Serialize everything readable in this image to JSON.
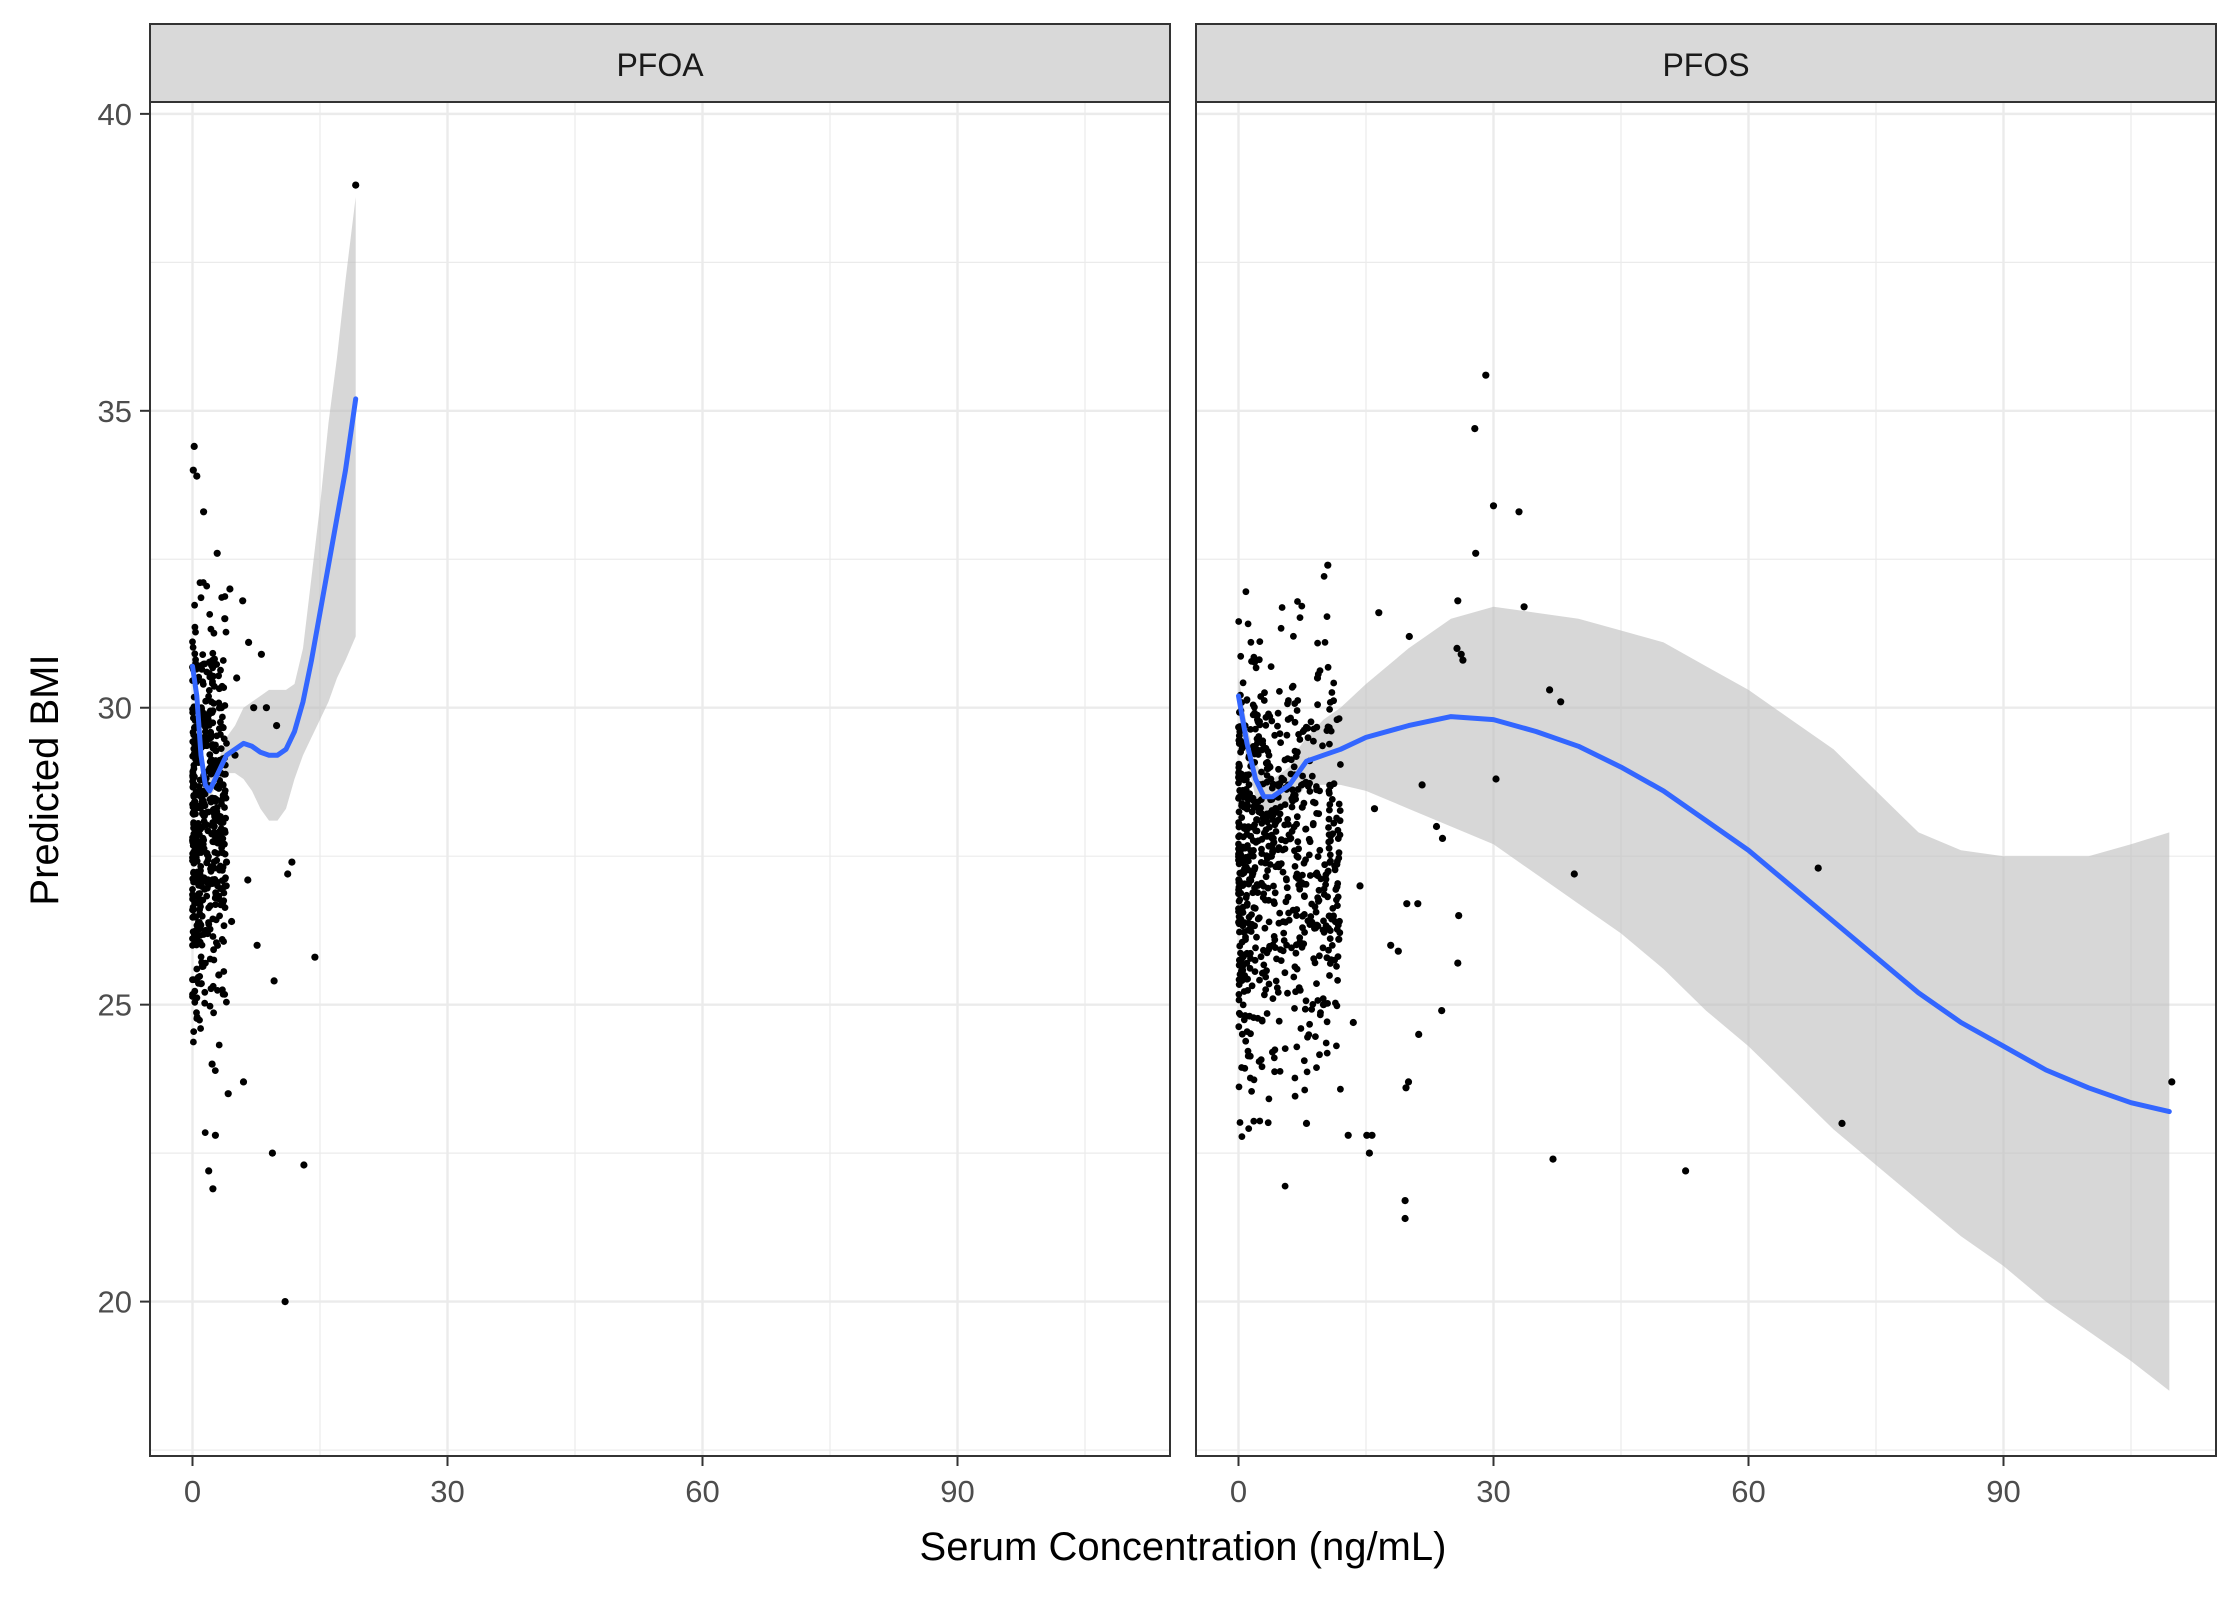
{
  "chart_data": {
    "type": "scatter",
    "xlabel": "Serum Concentration (ng/mL)",
    "ylabel": "Predicted BMI",
    "xlim": [
      -5,
      115
    ],
    "ylim": [
      17.4,
      40.2
    ],
    "x_ticks": [
      0,
      30,
      60,
      90
    ],
    "y_ticks": [
      20,
      25,
      30,
      35,
      40
    ],
    "grid": true,
    "colors": {
      "smooth": "#3366ff",
      "ribbon": "#bebebe",
      "points": "#000000",
      "strip": "#d9d9d9",
      "grid": "#ebebeb"
    },
    "panels": [
      {
        "name": "PFOA",
        "scatter_cluster": {
          "x_range": [
            0,
            4
          ],
          "y_range": [
            21.8,
            34.4
          ],
          "approx_count": 520
        },
        "points": [
          [
            19.2,
            38.8
          ],
          [
            0.2,
            34.4
          ],
          [
            0.1,
            34.0
          ],
          [
            0.5,
            33.9
          ],
          [
            1.3,
            33.3
          ],
          [
            10.9,
            20.0
          ],
          [
            11.7,
            27.4
          ],
          [
            11.2,
            27.2
          ],
          [
            14.4,
            25.8
          ],
          [
            9.6,
            25.4
          ],
          [
            9.4,
            22.5
          ],
          [
            13.1,
            22.3
          ],
          [
            2.7,
            22.8
          ],
          [
            2.4,
            21.9
          ],
          [
            1.9,
            22.2
          ],
          [
            6.0,
            23.7
          ],
          [
            4.2,
            23.5
          ],
          [
            6.5,
            27.1
          ],
          [
            7.6,
            26.0
          ],
          [
            3.4,
            30.0
          ],
          [
            5.2,
            30.5
          ],
          [
            6.6,
            31.1
          ],
          [
            5.9,
            31.8
          ],
          [
            4.4,
            32.0
          ],
          [
            7.2,
            30.0
          ],
          [
            8.1,
            30.9
          ],
          [
            4.0,
            27.4
          ],
          [
            3.1,
            25.5
          ],
          [
            3.6,
            28.7
          ],
          [
            5.0,
            29.2
          ],
          [
            9.9,
            29.7
          ],
          [
            8.7,
            30.0
          ],
          [
            2.9,
            32.6
          ],
          [
            3.8,
            31.5
          ],
          [
            2.3,
            24.0
          ],
          [
            4.6,
            26.4
          ]
        ],
        "smooth": {
          "x": [
            0,
            0.5,
            1,
            1.5,
            2,
            3,
            4,
            5,
            6,
            7,
            8,
            9,
            10,
            11,
            12,
            13,
            14,
            15,
            16,
            17,
            18,
            19.2
          ],
          "y": [
            30.7,
            30.2,
            29.2,
            28.7,
            28.6,
            28.9,
            29.2,
            29.3,
            29.4,
            29.35,
            29.25,
            29.2,
            29.2,
            29.3,
            29.6,
            30.1,
            30.8,
            31.6,
            32.4,
            33.2,
            34.0,
            35.2
          ]
        },
        "ribbon": {
          "x": [
            0,
            0.5,
            1,
            1.5,
            2,
            3,
            4,
            5,
            6,
            7,
            8,
            9,
            10,
            11,
            12,
            13,
            14,
            15,
            16,
            17,
            18,
            19.2
          ],
          "lower": [
            30.4,
            29.9,
            28.9,
            28.4,
            28.5,
            28.7,
            28.9,
            28.9,
            28.8,
            28.6,
            28.3,
            28.1,
            28.1,
            28.3,
            28.8,
            29.2,
            29.5,
            29.8,
            30.1,
            30.5,
            30.8,
            31.2
          ],
          "upper": [
            31.0,
            30.5,
            29.5,
            29.0,
            28.8,
            29.1,
            29.5,
            29.7,
            30.0,
            30.1,
            30.2,
            30.3,
            30.3,
            30.3,
            30.4,
            31.0,
            32.2,
            33.4,
            34.8,
            35.9,
            37.2,
            38.6
          ]
        }
      },
      {
        "name": "PFOS",
        "scatter_cluster": {
          "x_range": [
            0,
            12
          ],
          "y_range": [
            21.1,
            34.0
          ],
          "approx_count": 750
        },
        "points": [
          [
            29.1,
            35.6
          ],
          [
            27.8,
            34.7
          ],
          [
            30.0,
            33.4
          ],
          [
            33.0,
            33.3
          ],
          [
            27.9,
            32.6
          ],
          [
            25.8,
            31.8
          ],
          [
            33.6,
            31.7
          ],
          [
            16.5,
            31.6
          ],
          [
            20.1,
            31.2
          ],
          [
            25.7,
            31.0
          ],
          [
            26.2,
            30.9
          ],
          [
            26.4,
            30.8
          ],
          [
            36.6,
            30.3
          ],
          [
            37.9,
            30.1
          ],
          [
            30.3,
            28.8
          ],
          [
            21.6,
            28.7
          ],
          [
            23.3,
            28.0
          ],
          [
            24.0,
            27.8
          ],
          [
            68.2,
            27.3
          ],
          [
            39.5,
            27.2
          ],
          [
            19.8,
            26.7
          ],
          [
            21.1,
            26.7
          ],
          [
            25.9,
            26.5
          ],
          [
            18.8,
            25.9
          ],
          [
            17.9,
            26.0
          ],
          [
            25.8,
            25.7
          ],
          [
            21.2,
            24.5
          ],
          [
            23.9,
            24.9
          ],
          [
            20.0,
            23.7
          ],
          [
            19.7,
            23.6
          ],
          [
            109.8,
            23.7
          ],
          [
            71.0,
            23.0
          ],
          [
            15.7,
            22.8
          ],
          [
            15.1,
            22.8
          ],
          [
            12.9,
            22.8
          ],
          [
            15.4,
            22.5
          ],
          [
            37.0,
            22.4
          ],
          [
            52.6,
            22.2
          ],
          [
            19.6,
            21.7
          ],
          [
            19.6,
            21.4
          ],
          [
            8.0,
            23.0
          ],
          [
            10.0,
            25.0
          ],
          [
            14.3,
            27.0
          ],
          [
            16.0,
            28.3
          ],
          [
            13.5,
            24.7
          ],
          [
            9.3,
            30.5
          ],
          [
            10.5,
            32.4
          ],
          [
            11.8,
            26.1
          ]
        ],
        "smooth": {
          "x": [
            0,
            1,
            2,
            3,
            4,
            5,
            6,
            7,
            8,
            10,
            12,
            15,
            20,
            25,
            30,
            35,
            40,
            45,
            50,
            55,
            60,
            65,
            70,
            75,
            80,
            85,
            90,
            95,
            100,
            105,
            109.5
          ],
          "y": [
            30.2,
            29.4,
            28.8,
            28.5,
            28.5,
            28.6,
            28.7,
            28.9,
            29.1,
            29.2,
            29.3,
            29.5,
            29.7,
            29.85,
            29.8,
            29.6,
            29.35,
            29.0,
            28.6,
            28.1,
            27.6,
            27.0,
            26.4,
            25.8,
            25.2,
            24.7,
            24.3,
            23.9,
            23.6,
            23.35,
            23.2
          ]
        },
        "ribbon": {
          "x": [
            0,
            1,
            2,
            3,
            4,
            5,
            6,
            7,
            8,
            10,
            12,
            15,
            20,
            25,
            30,
            35,
            40,
            45,
            50,
            55,
            60,
            65,
            70,
            75,
            80,
            85,
            90,
            95,
            100,
            105,
            109.5
          ],
          "lower": [
            29.9,
            29.1,
            28.5,
            28.2,
            28.2,
            28.3,
            28.4,
            28.5,
            28.7,
            28.7,
            28.7,
            28.6,
            28.3,
            28.0,
            27.7,
            27.2,
            26.7,
            26.2,
            25.6,
            24.9,
            24.3,
            23.6,
            22.9,
            22.3,
            21.7,
            21.1,
            20.6,
            20.0,
            19.5,
            19.0,
            18.5
          ],
          "upper": [
            30.5,
            29.7,
            29.1,
            28.8,
            28.8,
            28.9,
            29.0,
            29.3,
            29.5,
            29.8,
            30.0,
            30.4,
            31.0,
            31.5,
            31.7,
            31.6,
            31.5,
            31.3,
            31.1,
            30.7,
            30.3,
            29.8,
            29.3,
            28.6,
            27.9,
            27.6,
            27.5,
            27.5,
            27.5,
            27.7,
            27.9
          ]
        }
      }
    ]
  }
}
